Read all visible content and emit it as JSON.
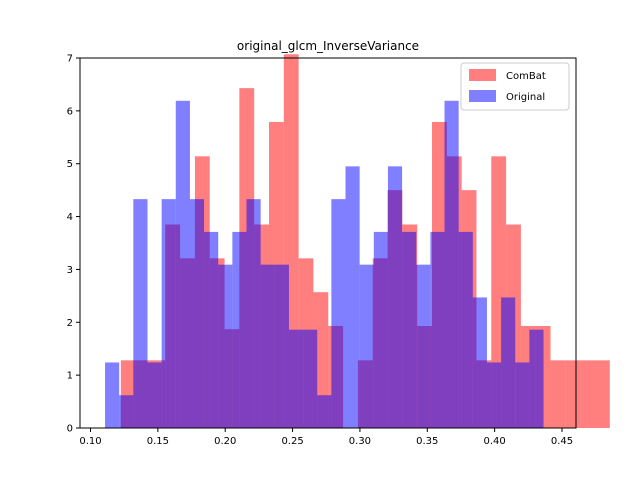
{
  "chart_data": {
    "type": "histogram",
    "title": "original_glcm_InverseVariance",
    "xlabel": "",
    "ylabel": "",
    "xlim": [
      0.1,
      0.45
    ],
    "ylim": [
      0,
      7
    ],
    "xticks": [
      "0.10",
      "0.15",
      "0.20",
      "0.25",
      "0.30",
      "0.35",
      "0.40",
      "0.45"
    ],
    "xtick_values": [
      0.1,
      0.15,
      0.2,
      0.25,
      0.3,
      0.35,
      0.4,
      0.45
    ],
    "yticks": [
      "0",
      "1",
      "2",
      "3",
      "4",
      "5",
      "6",
      "7"
    ],
    "ytick_values": [
      0,
      1,
      2,
      3,
      4,
      5,
      6,
      7
    ],
    "legend_position": "top-right",
    "series": [
      {
        "name": "ComBat",
        "color": "#ff0000",
        "alpha": 0.5,
        "bin_start": 0.1225,
        "bin_width": 0.011,
        "values": [
          1.28,
          1.28,
          1.28,
          3.85,
          3.21,
          5.14,
          3.21,
          1.87,
          6.43,
          3.85,
          5.79,
          7.07,
          3.21,
          2.57,
          1.93,
          0.0,
          1.28,
          3.21,
          4.5,
          3.85,
          1.93,
          5.79,
          5.14,
          4.5,
          1.28,
          5.14,
          3.85,
          1.93,
          1.93,
          1.28,
          1.28,
          1.28,
          1.28
        ]
      },
      {
        "name": "Original",
        "color": "#0000ff",
        "alpha": 0.5,
        "bin_start": 0.1108,
        "bin_width": 0.0105,
        "values": [
          1.24,
          0.62,
          4.33,
          1.24,
          4.33,
          6.19,
          4.33,
          3.71,
          3.09,
          3.71,
          4.33,
          3.09,
          3.09,
          1.86,
          1.86,
          0.62,
          4.33,
          4.95,
          3.09,
          3.71,
          4.95,
          3.71,
          3.09,
          3.71,
          6.19,
          3.71,
          2.47,
          1.24,
          2.47,
          1.24,
          1.86
        ]
      }
    ]
  }
}
